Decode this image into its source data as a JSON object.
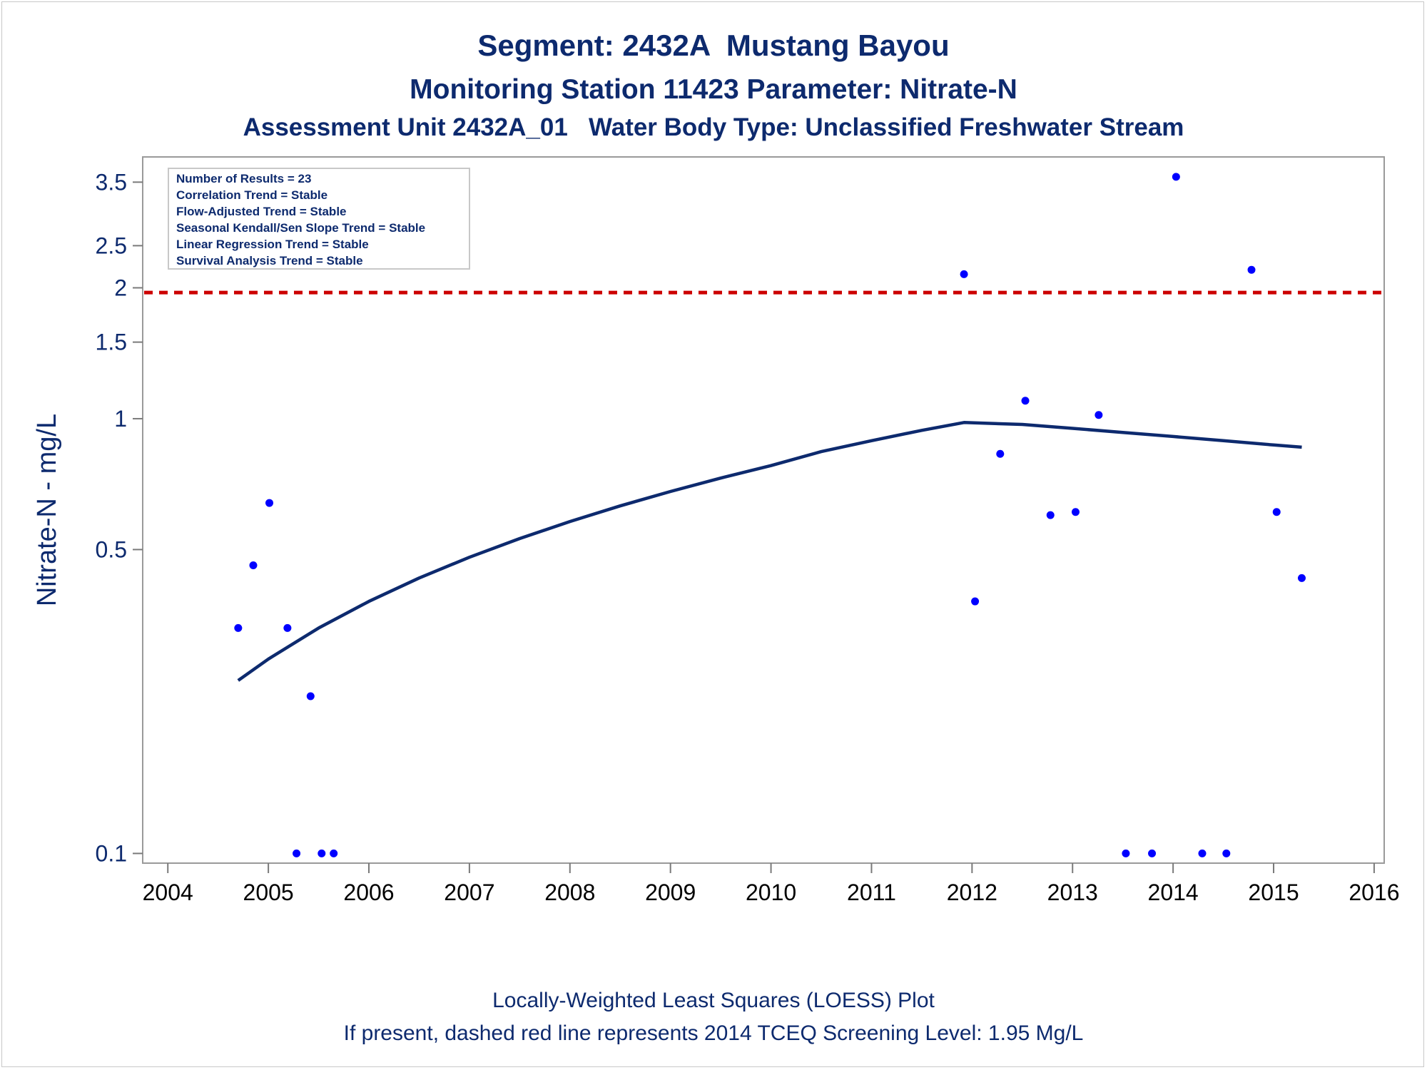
{
  "chart_data": {
    "type": "scatter",
    "title": "Segment: 2432A  Mustang Bayou",
    "subtitle1": "Monitoring Station 11423 Parameter: Nitrate-N",
    "subtitle2": "Assessment Unit 2432A_01   Water Body Type: Unclassified Freshwater Stream",
    "ylabel": "Nitrate-N - mg/L",
    "xlabel": "",
    "yscale": "log",
    "ylim": [
      0.095,
      4.0
    ],
    "xlim": [
      2003.75,
      2016.1
    ],
    "y_ticks": [
      0.1,
      0.5,
      1,
      1.5,
      2,
      2.5,
      3.5
    ],
    "y_tick_labels": [
      "0.1",
      "0.5",
      "1",
      "1.5",
      "2",
      "2.5",
      "3.5"
    ],
    "x_ticks": [
      2004,
      2005,
      2006,
      2007,
      2008,
      2009,
      2010,
      2011,
      2012,
      2013,
      2014,
      2015,
      2016
    ],
    "x_tick_labels": [
      "2004",
      "2005",
      "2006",
      "2007",
      "2008",
      "2009",
      "2010",
      "2011",
      "2012",
      "2013",
      "2014",
      "2015",
      "2016"
    ],
    "grid": false,
    "legend_position": "top-left",
    "legend_lines": [
      "Number of Results = 23",
      "Correlation Trend = Stable",
      "Flow-Adjusted Trend = Stable",
      "Seasonal Kendall/Sen Slope Trend = Stable",
      "Linear Regression Trend = Stable",
      "Survival Analysis Trend = Stable"
    ],
    "points": [
      {
        "x": 2004.7,
        "y": 0.33
      },
      {
        "x": 2004.85,
        "y": 0.46
      },
      {
        "x": 2005.01,
        "y": 0.64
      },
      {
        "x": 2005.19,
        "y": 0.33
      },
      {
        "x": 2005.28,
        "y": 0.1
      },
      {
        "x": 2005.42,
        "y": 0.23
      },
      {
        "x": 2005.53,
        "y": 0.1
      },
      {
        "x": 2005.65,
        "y": 0.1
      },
      {
        "x": 2011.92,
        "y": 2.15
      },
      {
        "x": 2012.03,
        "y": 0.38
      },
      {
        "x": 2012.28,
        "y": 0.83
      },
      {
        "x": 2012.53,
        "y": 1.1
      },
      {
        "x": 2012.78,
        "y": 0.6
      },
      {
        "x": 2013.03,
        "y": 0.61
      },
      {
        "x": 2013.26,
        "y": 1.02
      },
      {
        "x": 2013.53,
        "y": 0.1
      },
      {
        "x": 2013.79,
        "y": 0.1
      },
      {
        "x": 2014.03,
        "y": 3.6
      },
      {
        "x": 2014.29,
        "y": 0.1
      },
      {
        "x": 2014.53,
        "y": 0.1
      },
      {
        "x": 2014.78,
        "y": 2.2
      },
      {
        "x": 2015.03,
        "y": 0.61
      },
      {
        "x": 2015.28,
        "y": 0.43
      }
    ],
    "loess": {
      "x": [
        2004.7,
        2005.0,
        2005.5,
        2006.0,
        2006.5,
        2007.0,
        2007.5,
        2008.0,
        2008.5,
        2009.0,
        2009.5,
        2010.0,
        2010.5,
        2011.0,
        2011.5,
        2011.92,
        2012.5,
        2013.0,
        2013.5,
        2014.0,
        2014.5,
        2015.0,
        2015.28
      ],
      "y": [
        0.25,
        0.28,
        0.33,
        0.38,
        0.43,
        0.48,
        0.53,
        0.58,
        0.63,
        0.68,
        0.73,
        0.78,
        0.84,
        0.89,
        0.94,
        0.98,
        0.97,
        0.95,
        0.93,
        0.91,
        0.89,
        0.87,
        0.86
      ]
    },
    "reference_line": {
      "y": 1.95,
      "style": "dashed",
      "color": "#cc0000"
    },
    "colors": {
      "points": "#0000ff",
      "loess": "#0d2a6e",
      "text": "#0d2a6e"
    }
  },
  "footer": {
    "line1": "Locally-Weighted Least Squares (LOESS) Plot",
    "line2": "If present, dashed red line represents 2014 TCEQ Screening Level: 1.95 Mg/L"
  }
}
